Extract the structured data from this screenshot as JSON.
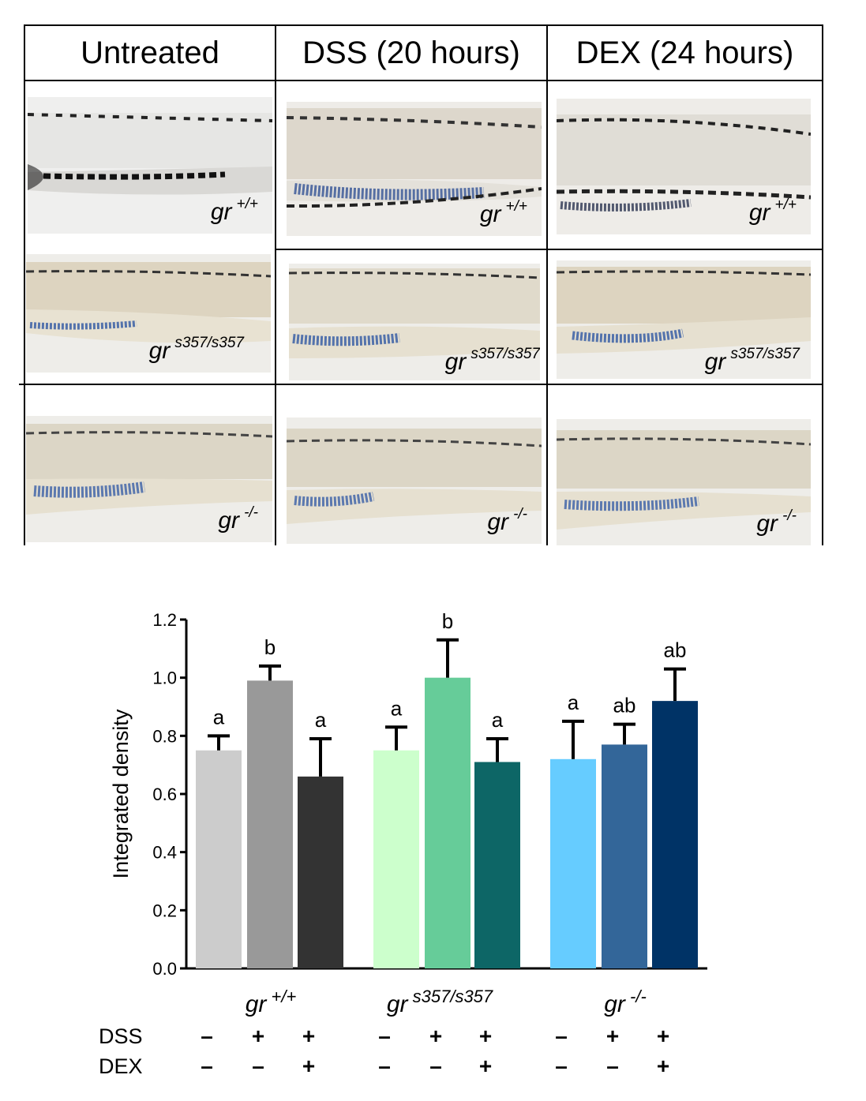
{
  "grid": {
    "columns": [
      "Untreated",
      "DSS (20 hours)",
      "DEX (24 hours)"
    ],
    "row_labels": [
      {
        "base": "gr",
        "sup": "+/+"
      },
      {
        "base": "gr",
        "sup": "s357/s357"
      },
      {
        "base": "gr",
        "sup": "-/-"
      }
    ]
  },
  "chart_data": {
    "type": "bar",
    "ylabel": "Integrated density",
    "ylim": [
      0,
      1.2
    ],
    "yticks": [
      "0.0",
      "0.2",
      "0.4",
      "0.6",
      "0.8",
      "1.0",
      "1.2"
    ],
    "groups": [
      {
        "base": "gr",
        "sup": "+/+"
      },
      {
        "base": "gr",
        "sup": "s357/s357"
      },
      {
        "base": "gr",
        "sup": "-/-"
      }
    ],
    "treatment_rows": [
      {
        "name": "DSS",
        "values": [
          "–",
          "+",
          "+",
          "–",
          "+",
          "+",
          "–",
          "+",
          "+"
        ]
      },
      {
        "name": "DEX",
        "values": [
          "–",
          "–",
          "+",
          "–",
          "–",
          "+",
          "–",
          "–",
          "+"
        ]
      }
    ],
    "bars": [
      {
        "group": 0,
        "value": 0.75,
        "error": 0.05,
        "letter": "a",
        "color": "#cccccc"
      },
      {
        "group": 0,
        "value": 0.99,
        "error": 0.05,
        "letter": "b",
        "color": "#999999"
      },
      {
        "group": 0,
        "value": 0.66,
        "error": 0.13,
        "letter": "a",
        "color": "#333333"
      },
      {
        "group": 1,
        "value": 0.75,
        "error": 0.08,
        "letter": "a",
        "color": "#ccffcc"
      },
      {
        "group": 1,
        "value": 1.0,
        "error": 0.13,
        "letter": "b",
        "color": "#66cc99"
      },
      {
        "group": 1,
        "value": 0.71,
        "error": 0.08,
        "letter": "a",
        "color": "#0d6666"
      },
      {
        "group": 2,
        "value": 0.72,
        "error": 0.13,
        "letter": "a",
        "color": "#66ccff"
      },
      {
        "group": 2,
        "value": 0.77,
        "error": 0.07,
        "letter": "ab",
        "color": "#336699"
      },
      {
        "group": 2,
        "value": 0.92,
        "error": 0.11,
        "letter": "ab",
        "color": "#003366"
      }
    ]
  }
}
